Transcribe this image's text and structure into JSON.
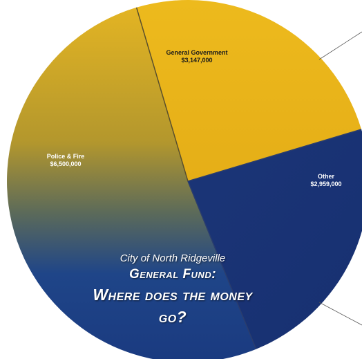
{
  "chart_data": {
    "type": "pie",
    "slices": [
      {
        "label": "General Government",
        "value": 3147000,
        "value_text": "$3,147,000",
        "color": "#e8b520"
      },
      {
        "label": "Other",
        "value": 2959000,
        "value_text": "$2,959,000",
        "color": "#1c3577"
      },
      {
        "label": "Police & Fire",
        "value": 6500000,
        "value_text": "$6,500,000",
        "color": "#c9a321"
      }
    ],
    "title_lines": [
      "City of North Ridgeville",
      "General Fund:",
      "Where does the money go?"
    ],
    "legend": "none"
  },
  "colors": {
    "gold": "#e8b520",
    "gold_dark": "#c9a321",
    "navy": "#1c3577",
    "navy_dark": "#142a63",
    "divider": "#5a4f2c"
  }
}
